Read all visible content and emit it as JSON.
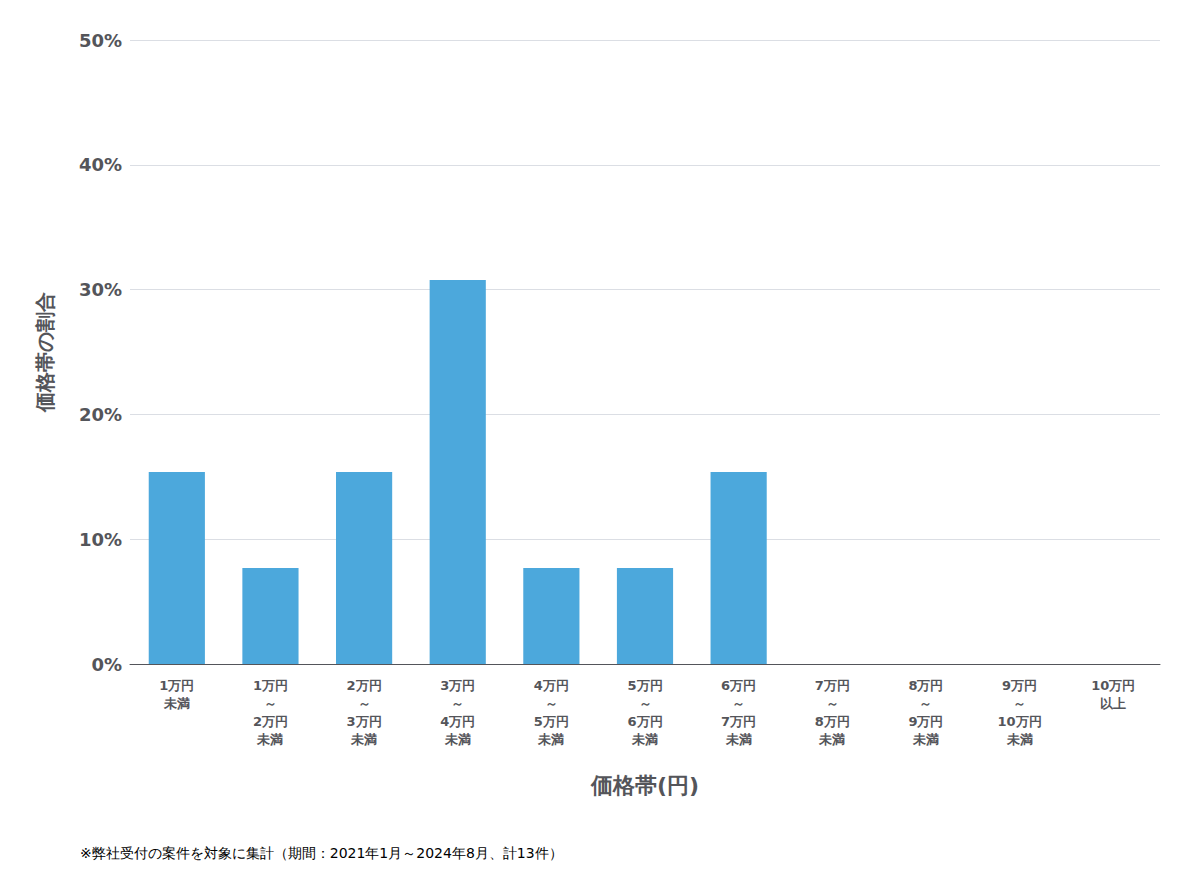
{
  "chart_data": {
    "type": "bar",
    "xlabel": "価格帯(円)",
    "ylabel": "価格帯の割合",
    "annotations": [
      "※弊社受付の案件を対象に集計（期間：2021年1月～2024年8月、計13件）"
    ],
    "categories": [
      "1万円\n未満",
      "1万円\n～\n2万円\n未満",
      "2万円\n～\n3万円\n未満",
      "3万円\n～\n4万円\n未満",
      "4万円\n～\n5万円\n未満",
      "5万円\n～\n6万円\n未満",
      "6万円\n～\n7万円\n未満",
      "7万円\n～\n8万円\n未満",
      "8万円\n～\n9万円\n未満",
      "9万円\n～\n10万円\n未満",
      "10万円\n以上"
    ],
    "values": [
      0.1538,
      0.0769,
      0.1538,
      0.3077,
      0.0769,
      0.0769,
      0.1538,
      0.0,
      0.0,
      0.0,
      0.0
    ],
    "color": "#4CA8DC",
    "ylim": [
      0,
      0.5
    ],
    "yticks": [
      {
        "value": 0.0,
        "label": "0%"
      },
      {
        "value": 0.1,
        "label": "10%"
      },
      {
        "value": 0.2,
        "label": "20%"
      },
      {
        "value": 0.3,
        "label": "30%"
      },
      {
        "value": 0.4,
        "label": "40%"
      },
      {
        "value": 0.5,
        "label": "50%"
      }
    ],
    "grid": true
  }
}
